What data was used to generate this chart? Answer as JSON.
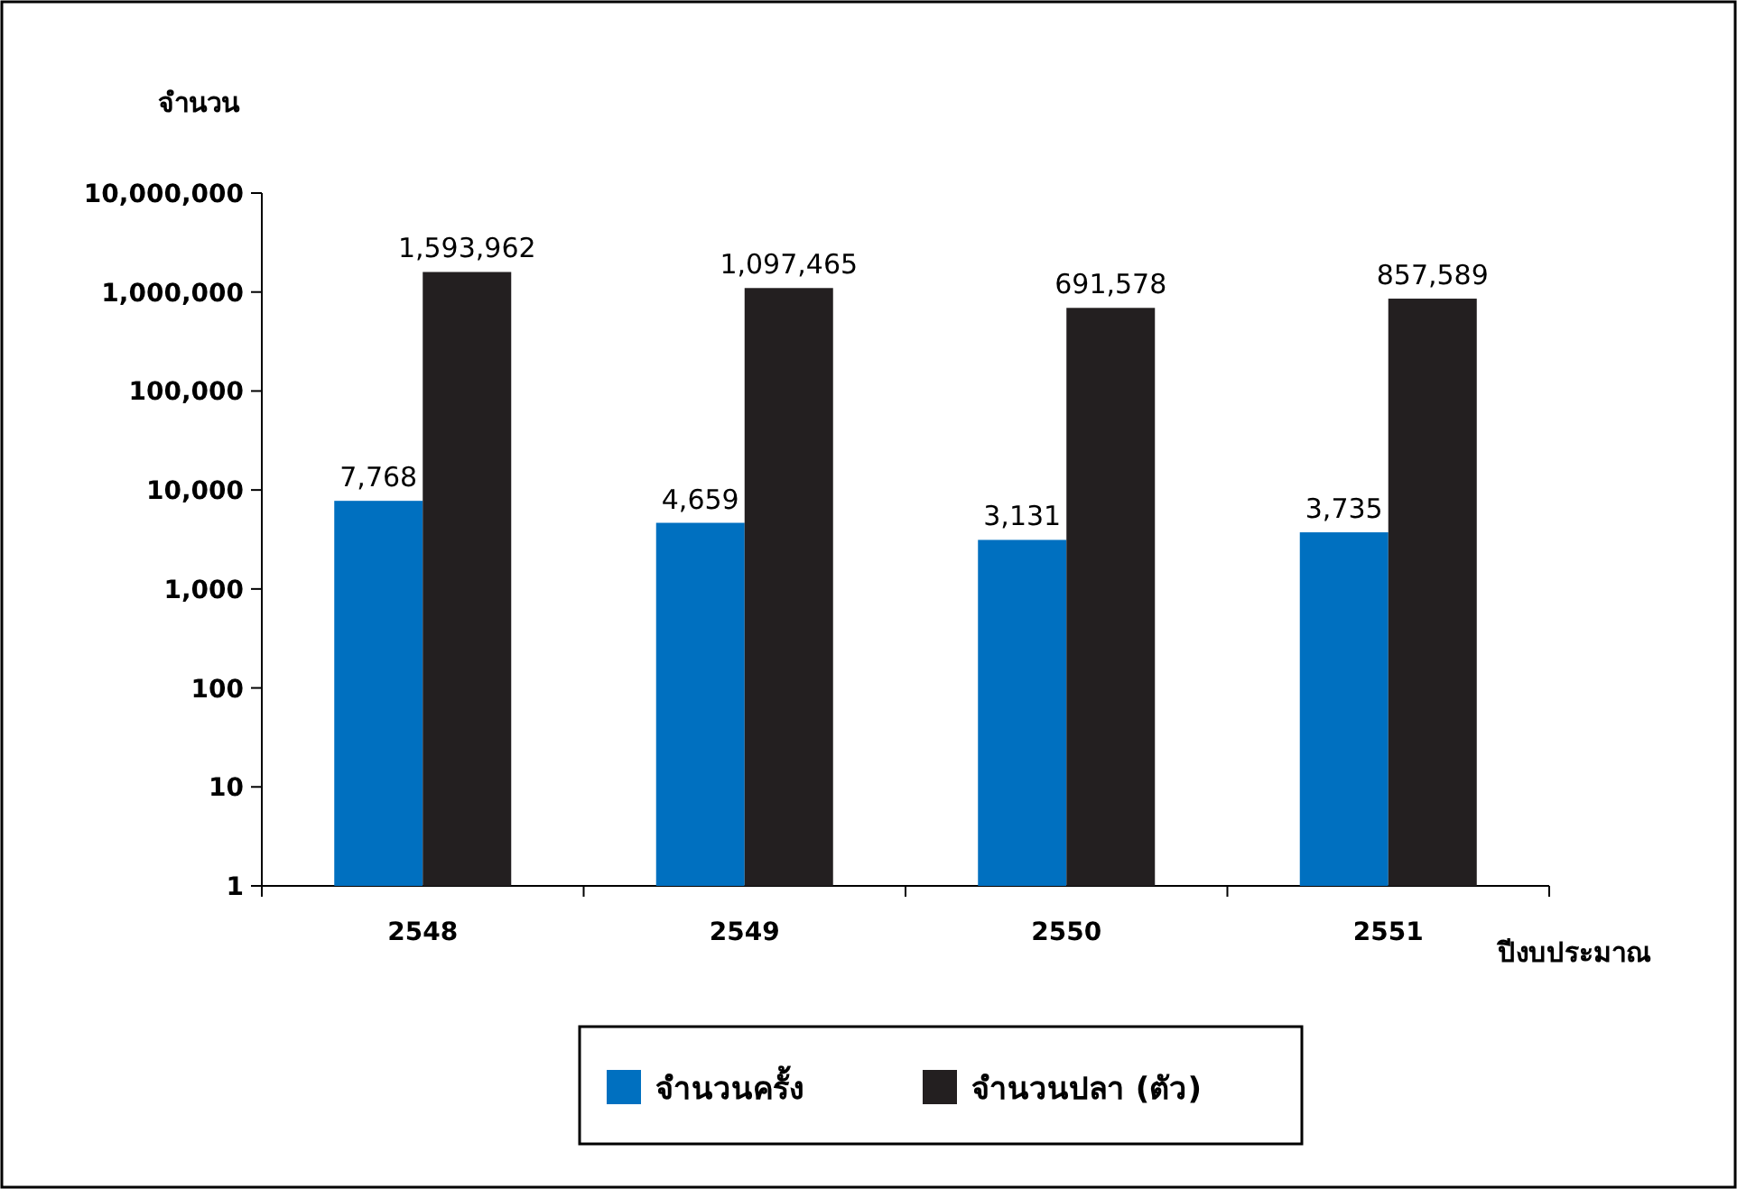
{
  "chart_data": {
    "type": "bar",
    "ylabel": "จำนวน",
    "xlabel": "ปีงบประมาณ",
    "categories": [
      "2548",
      "2549",
      "2550",
      "2551"
    ],
    "series": [
      {
        "name": "จำนวนครั้ง",
        "color": "#0070c0",
        "values": [
          7768,
          4659,
          3131,
          3735
        ],
        "value_labels": [
          "7,768",
          "4,659",
          "3,131",
          "3,735"
        ]
      },
      {
        "name": "จำนวนปลา (ตัว)",
        "color": "#231f20",
        "values": [
          1593962,
          1097465,
          691578,
          857589
        ],
        "value_labels": [
          "1,593,962",
          "1,097,465",
          "691,578",
          "857,589"
        ]
      }
    ],
    "log": "y",
    "ylim": [
      1,
      10000000
    ],
    "yticks": [
      {
        "value": 1,
        "label": "1"
      },
      {
        "value": 10,
        "label": "10"
      },
      {
        "value": 100,
        "label": "100"
      },
      {
        "value": 1000,
        "label": "1,000"
      },
      {
        "value": 10000,
        "label": "10,000"
      },
      {
        "value": 100000,
        "label": "100,000"
      },
      {
        "value": 1000000,
        "label": "1,000,000"
      },
      {
        "value": 10000000,
        "label": "10,000,000"
      }
    ],
    "grid": false,
    "legend": "bottom"
  }
}
